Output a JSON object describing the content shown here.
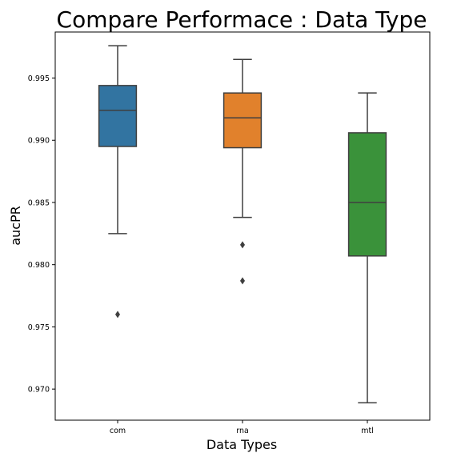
{
  "chart_data": {
    "type": "box",
    "title": "Compare Performace : Data Type",
    "xlabel": "Data Types",
    "ylabel": "aucPR",
    "ylim": [
      0.9675,
      0.9987
    ],
    "yticks": [
      "0.970",
      "0.975",
      "0.980",
      "0.985",
      "0.990",
      "0.995"
    ],
    "grid": false,
    "categories": [
      "com",
      "rna",
      "mtl"
    ],
    "boxes": [
      {
        "category": "com",
        "whisker_low": 0.9825,
        "q1": 0.9895,
        "median": 0.9924,
        "q3": 0.9944,
        "whisker_high": 0.9976,
        "outliers": [
          0.976
        ],
        "color": "#3274a1"
      },
      {
        "category": "rna",
        "whisker_low": 0.9838,
        "q1": 0.9894,
        "median": 0.9918,
        "q3": 0.9938,
        "whisker_high": 0.9965,
        "outliers": [
          0.9816,
          0.9787
        ],
        "color": "#e1812c"
      },
      {
        "category": "mtl",
        "whisker_low": 0.9689,
        "q1": 0.9807,
        "median": 0.985,
        "q3": 0.9906,
        "whisker_high": 0.9938,
        "outliers": [],
        "color": "#3a923a"
      }
    ],
    "line_color": "#3f3f3f",
    "axes_color": "#000000"
  }
}
